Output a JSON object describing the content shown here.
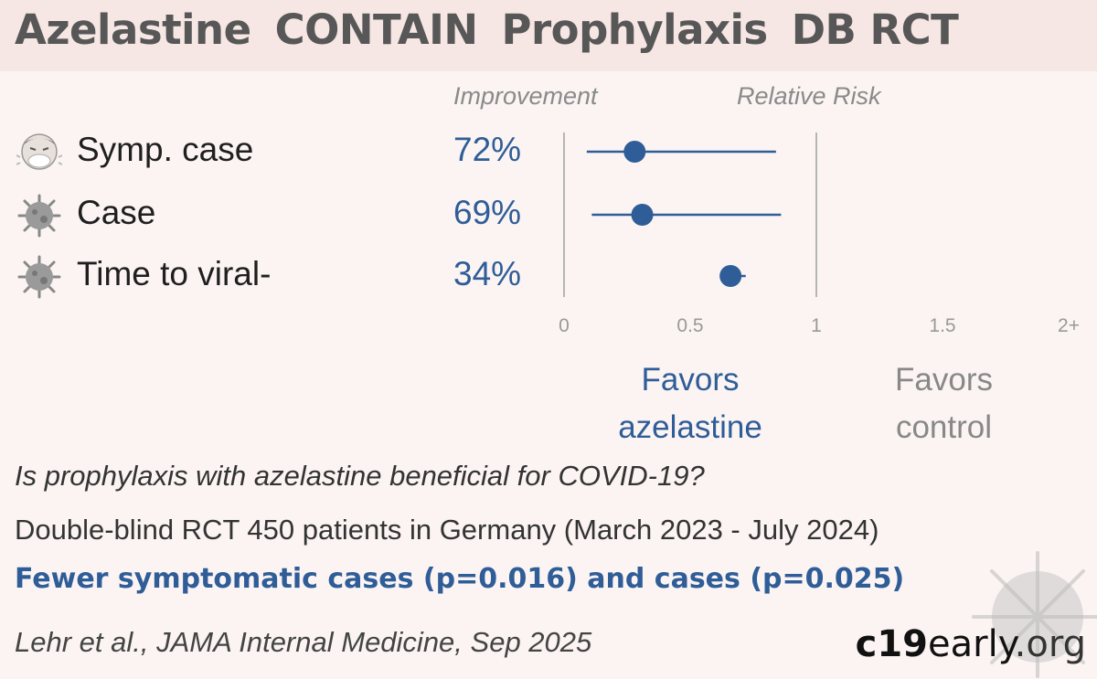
{
  "title": {
    "drug": "Azelastine",
    "trial": "CONTAIN",
    "setting": "Prophylaxis",
    "design": "DB RCT"
  },
  "headers": {
    "improvement": "Improvement",
    "relative_risk": "Relative Risk"
  },
  "rows": [
    {
      "label": "Symp. case",
      "improvement": "72%",
      "icon": "sneezing-face-icon"
    },
    {
      "label": "Case",
      "improvement": "69%",
      "icon": "virus-icon"
    },
    {
      "label": "Time to viral-",
      "improvement": "34%",
      "icon": "virus-icon"
    }
  ],
  "favors": {
    "treatment_1": "Favors",
    "treatment_2": "azelastine",
    "control_1": "Favors",
    "control_2": "control"
  },
  "question": "Is prophylaxis with azelastine beneficial for COVID-19?",
  "description": "Double-blind RCT 450 patients in Germany (March 2023 - July 2024)",
  "finding": "Fewer symptomatic cases (p=0.016) and cases (p=0.025)",
  "citation": "Lehr et al., JAMA Internal Medicine, Sep 2025",
  "brand": {
    "bold": "c19",
    "mid": "early",
    "end": ".org"
  },
  "colors": {
    "accent": "#2f5d97",
    "muted": "#888888",
    "title_bg": "#f6e6e4",
    "background": "#fbf4f3"
  },
  "chart_data": {
    "type": "forest",
    "xlabel": "Relative Risk",
    "xlim": [
      0,
      2
    ],
    "x_scale": "linear up to 1.5, then 2+",
    "reference_line": 1,
    "ticks": [
      "0",
      "0.5",
      "1",
      "1.5",
      "2+"
    ],
    "tick_values": [
      0,
      0.5,
      1,
      1.5,
      2
    ],
    "series": [
      {
        "label": "Symp. case",
        "rr": 0.28,
        "ci_low": 0.09,
        "ci_high": 0.84
      },
      {
        "label": "Case",
        "rr": 0.31,
        "ci_low": 0.11,
        "ci_high": 0.86
      },
      {
        "label": "Time to viral-",
        "rr": 0.66,
        "ci_low": 0.66,
        "ci_high": 0.72
      }
    ]
  }
}
